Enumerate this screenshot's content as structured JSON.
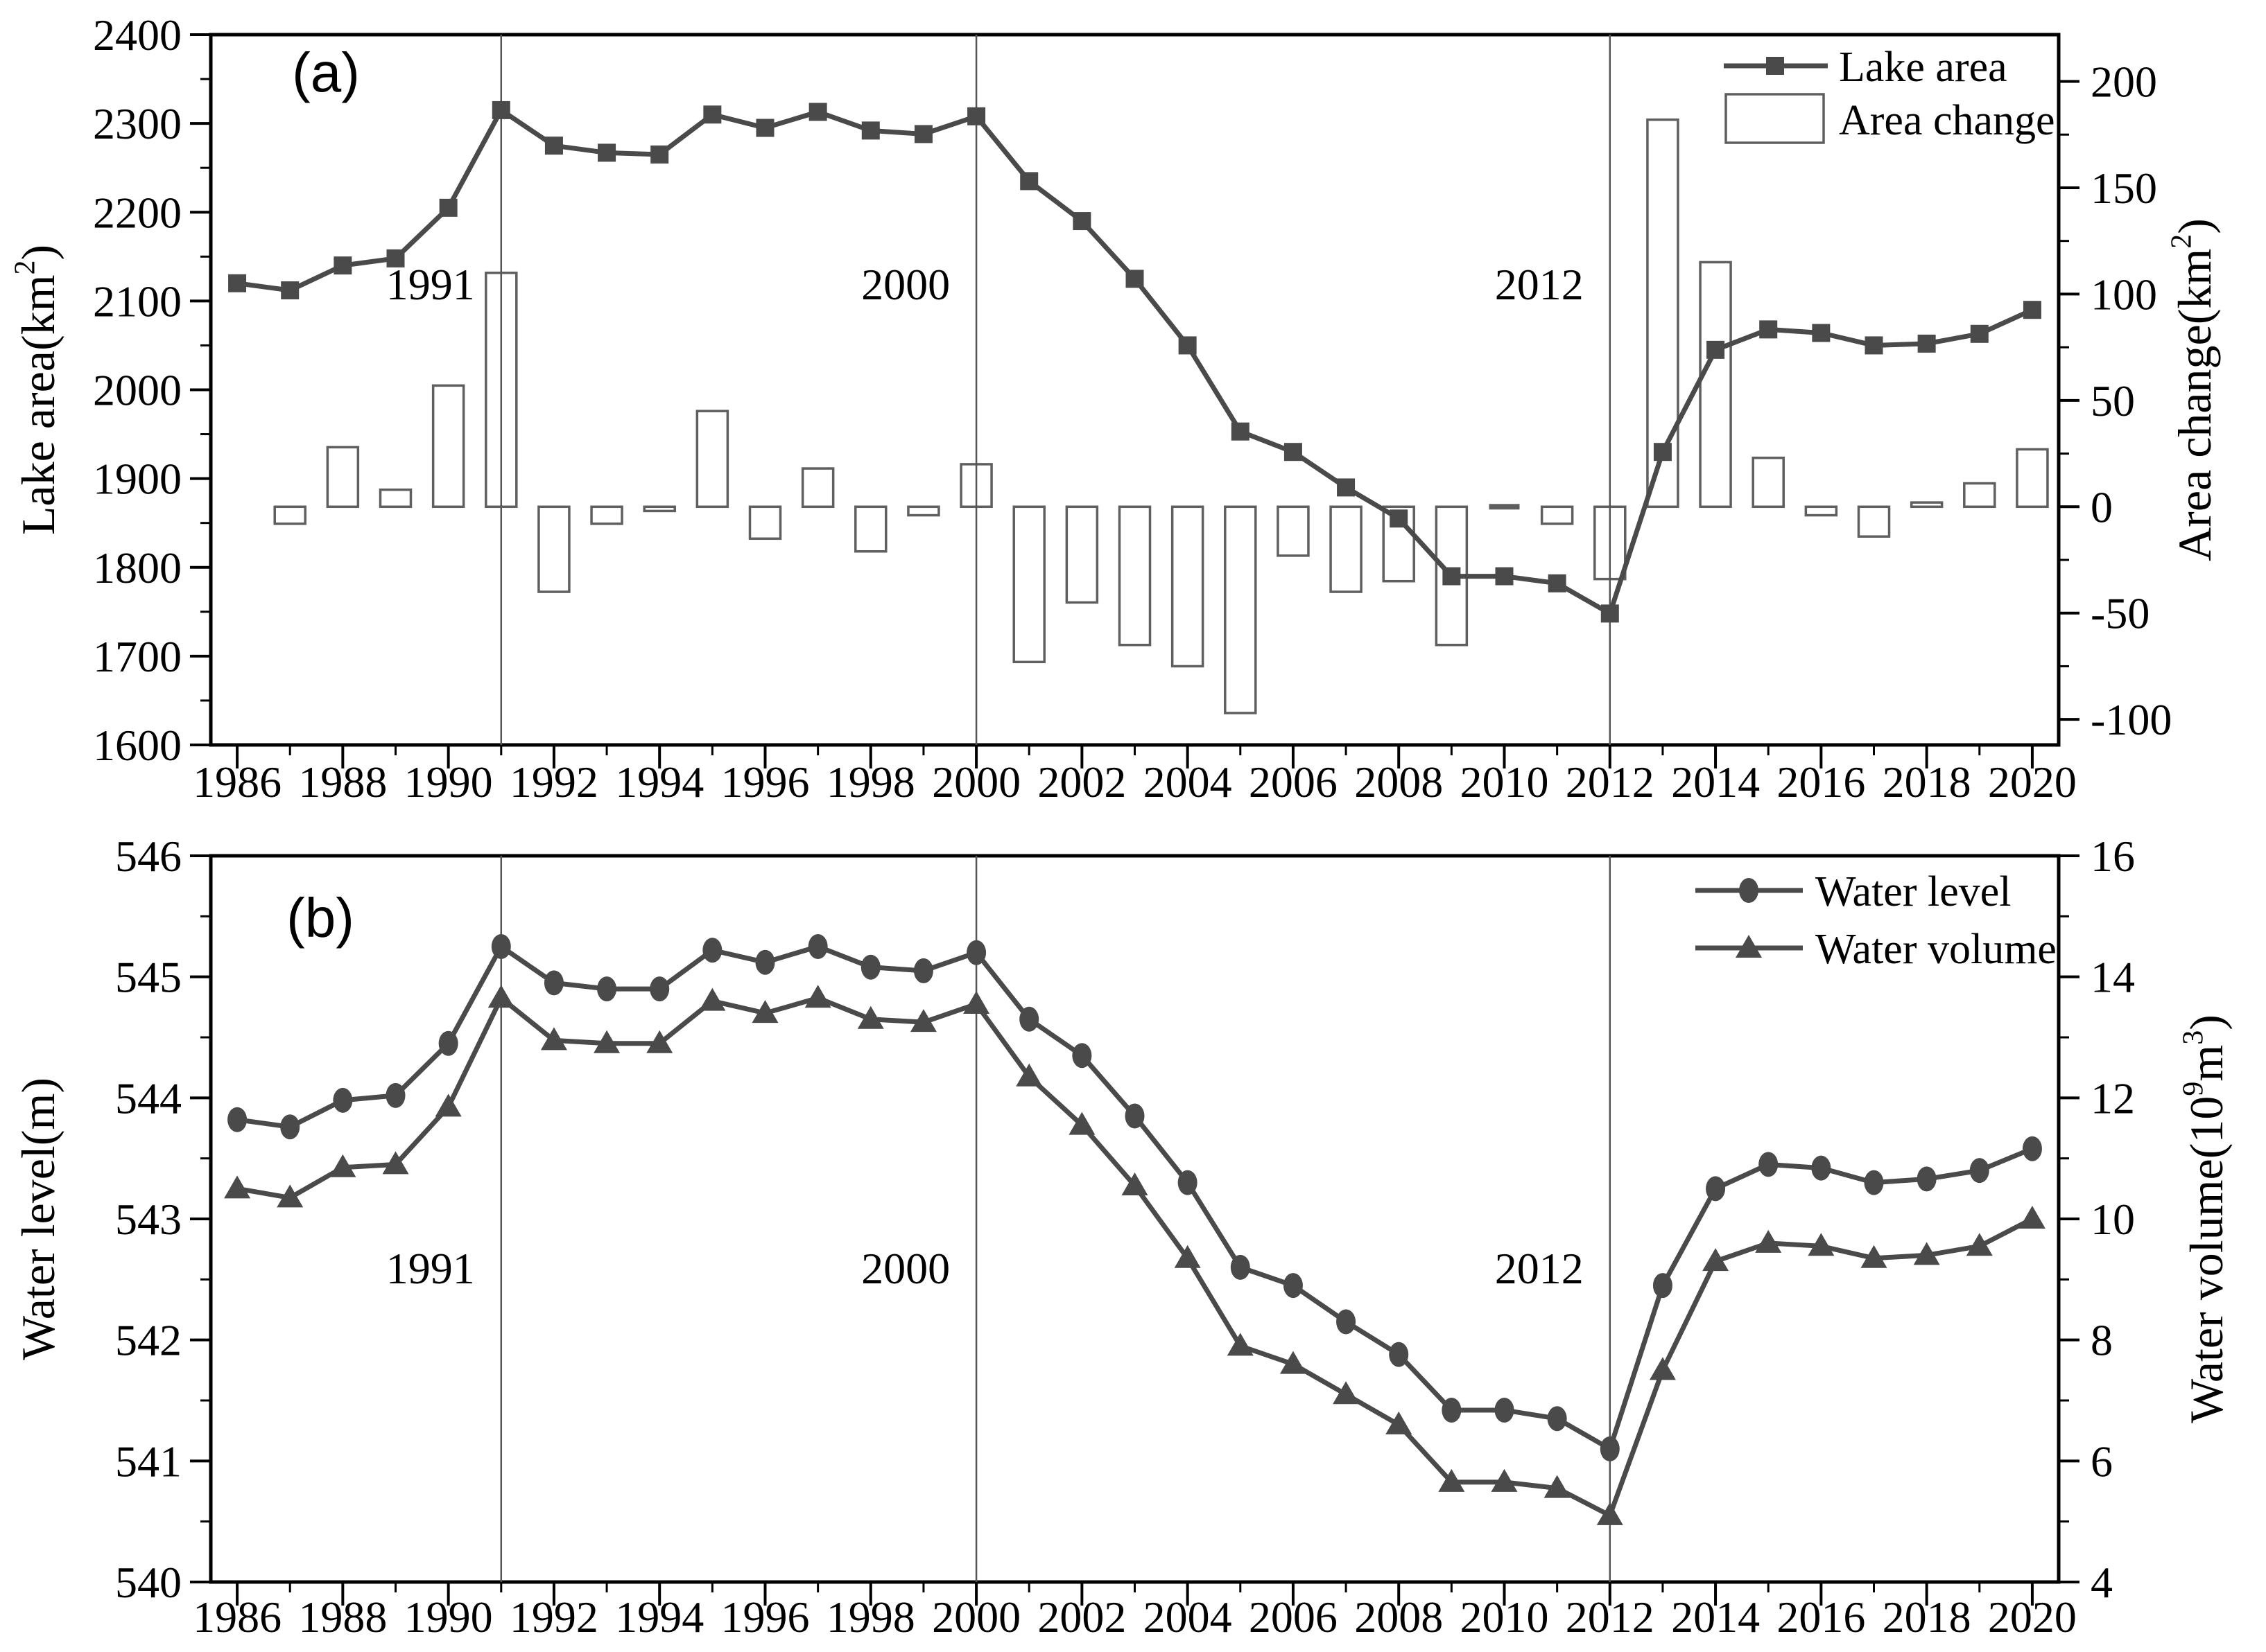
{
  "figure": {
    "background": "#ffffff",
    "series_color": "#4a4a4a",
    "bar_fill": "#ffffff",
    "bar_stroke": "#5f5f5f",
    "ref_line_color": "#555555",
    "frame_color": "#000000",
    "text_color": "#000000"
  },
  "chart_data": [
    {
      "id": "a",
      "panel_tag": "(a)",
      "type": "bar",
      "subtype": "line+bar dual axis",
      "x": [
        1986,
        1987,
        1988,
        1989,
        1990,
        1991,
        1992,
        1993,
        1994,
        1995,
        1996,
        1997,
        1998,
        1999,
        2000,
        2001,
        2002,
        2003,
        2004,
        2005,
        2006,
        2007,
        2008,
        2009,
        2010,
        2011,
        2012,
        2013,
        2014,
        2015,
        2016,
        2017,
        2018,
        2019,
        2020
      ],
      "series": [
        {
          "name": "Lake area",
          "type": "line",
          "marker": "square",
          "axis": "left",
          "values": [
            2120,
            2112,
            2140,
            2148,
            2205,
            2315,
            2275,
            2267,
            2265,
            2310,
            2295,
            2313,
            2292,
            2288,
            2308,
            2235,
            2190,
            2125,
            2050,
            1953,
            1930,
            1890,
            1855,
            1790,
            1790,
            1782,
            1748,
            1930,
            2045,
            2068,
            2064,
            2050,
            2052,
            2063,
            2090
          ]
        },
        {
          "name": "Area change",
          "type": "bar",
          "axis": "right",
          "values": [
            null,
            -8,
            28,
            8,
            57,
            110,
            -40,
            -8,
            -2,
            45,
            -15,
            18,
            -21,
            -4,
            20,
            -73,
            -45,
            -65,
            -75,
            -97,
            -23,
            -40,
            -35,
            -65,
            0,
            -8,
            -34,
            182,
            115,
            23,
            -4,
            -14,
            2,
            11,
            27
          ]
        }
      ],
      "ylabel_left": "Lake area(km^{2})",
      "ylabel_right": "Area change(km^{2})",
      "xlabel": "",
      "ylim_left": [
        1600,
        2400
      ],
      "yticks_left": [
        1600,
        1700,
        1800,
        1900,
        2000,
        2100,
        2200,
        2300,
        2400
      ],
      "ylim_right": [
        -112,
        222
      ],
      "yticks_right": [
        -100,
        -50,
        0,
        50,
        100,
        150,
        200
      ],
      "xlim": [
        1985.5,
        2020.5
      ],
      "xticks": [
        1986,
        1988,
        1990,
        1992,
        1994,
        1996,
        1998,
        2000,
        2002,
        2004,
        2006,
        2008,
        2010,
        2012,
        2014,
        2016,
        2018,
        2020
      ],
      "grid": false,
      "legend": [
        "Lake area",
        "Area change"
      ],
      "legend_position": "top-right",
      "ref_lines": [
        1991,
        2000,
        2012
      ],
      "annotations": [
        {
          "text": "1991",
          "year": 1991
        },
        {
          "text": "2000",
          "year": 2000
        },
        {
          "text": "2012",
          "year": 2012
        }
      ]
    },
    {
      "id": "b",
      "panel_tag": "(b)",
      "type": "line",
      "subtype": "two lines dual axis",
      "x": [
        1986,
        1987,
        1988,
        1989,
        1990,
        1991,
        1992,
        1993,
        1994,
        1995,
        1996,
        1997,
        1998,
        1999,
        2000,
        2001,
        2002,
        2003,
        2004,
        2005,
        2006,
        2007,
        2008,
        2009,
        2010,
        2011,
        2012,
        2013,
        2014,
        2015,
        2016,
        2017,
        2018,
        2019,
        2020
      ],
      "series": [
        {
          "name": "Water level",
          "type": "line",
          "marker": "circle",
          "axis": "left",
          "values": [
            543.82,
            543.76,
            543.98,
            544.02,
            544.45,
            545.25,
            544.95,
            544.9,
            544.9,
            545.22,
            545.12,
            545.25,
            545.08,
            545.05,
            545.2,
            544.65,
            544.35,
            543.85,
            543.3,
            542.6,
            542.45,
            542.15,
            541.88,
            541.42,
            541.42,
            541.35,
            541.1,
            542.45,
            543.25,
            543.45,
            543.42,
            543.3,
            543.33,
            543.4,
            543.58
          ]
        },
        {
          "name": "Water volume",
          "type": "line",
          "marker": "triangle",
          "axis": "right",
          "values": [
            10.5,
            10.35,
            10.85,
            10.9,
            11.85,
            13.65,
            12.95,
            12.9,
            12.9,
            13.6,
            13.4,
            13.65,
            13.3,
            13.25,
            13.55,
            12.35,
            11.55,
            10.55,
            9.35,
            7.9,
            7.6,
            7.1,
            6.6,
            5.65,
            5.65,
            5.55,
            5.1,
            7.5,
            9.3,
            9.6,
            9.55,
            9.35,
            9.4,
            9.55,
            10.0
          ]
        }
      ],
      "ylabel_left": "Water level(m)",
      "ylabel_right": "Water volume(10^{9}m^{3})",
      "xlabel": "",
      "ylim_left": [
        540,
        546
      ],
      "yticks_left": [
        540,
        541,
        542,
        543,
        544,
        545,
        546
      ],
      "ylim_right": [
        4,
        16
      ],
      "yticks_right": [
        4,
        6,
        8,
        10,
        12,
        14,
        16
      ],
      "xlim": [
        1985.5,
        2020.5
      ],
      "xticks": [
        1986,
        1988,
        1990,
        1992,
        1994,
        1996,
        1998,
        2000,
        2002,
        2004,
        2006,
        2008,
        2010,
        2012,
        2014,
        2016,
        2018,
        2020
      ],
      "grid": false,
      "legend": [
        "Water level",
        "Water volume"
      ],
      "legend_position": "top-right",
      "ref_lines": [
        1991,
        2000,
        2012
      ],
      "annotations": [
        {
          "text": "1991",
          "year": 1991
        },
        {
          "text": "2000",
          "year": 2000
        },
        {
          "text": "2012",
          "year": 2012
        }
      ]
    }
  ]
}
